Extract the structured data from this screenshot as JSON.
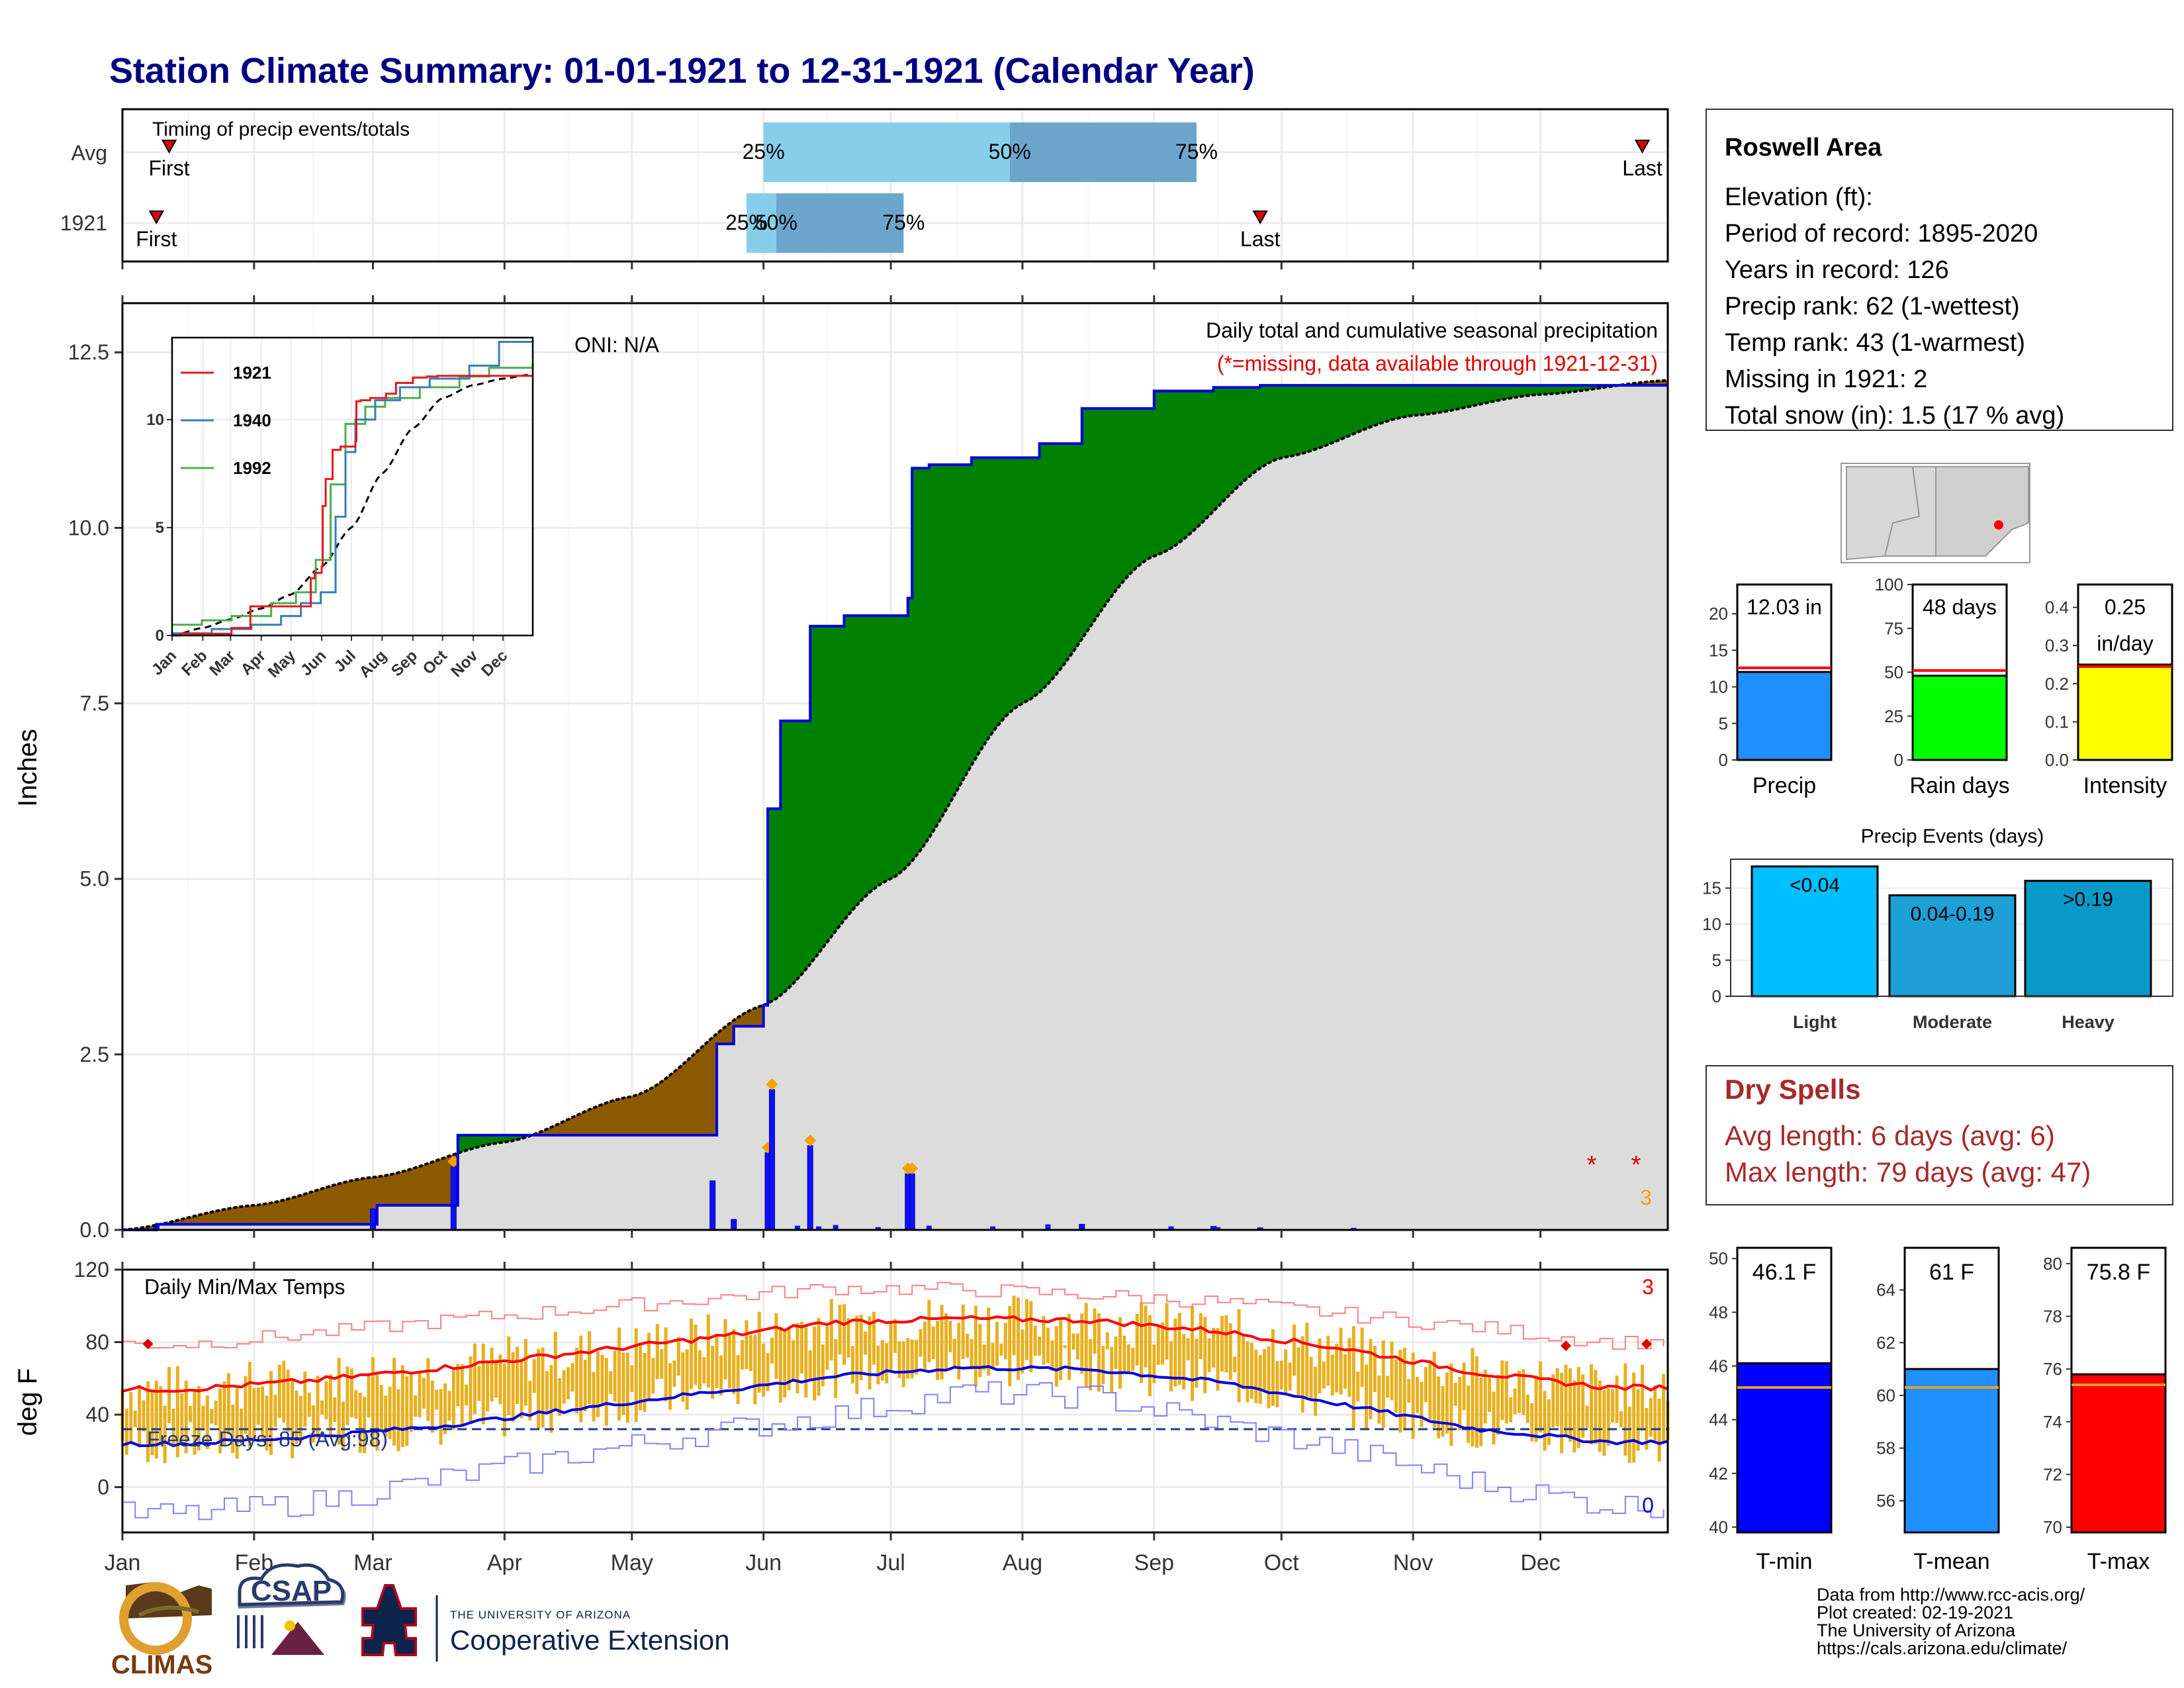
{
  "page": {
    "title": "Station Climate Summary: 01-01-1921 to 12-31-1921 (Calendar Year)"
  },
  "timing": {
    "title": "Timing of precip events/totals",
    "rows": [
      {
        "label": "Avg",
        "first_label": "First",
        "last_label": "Last",
        "first_day": 11,
        "last_day": 358,
        "p25_day": 151,
        "p50_day": 209,
        "p75_day": 253,
        "p25_label": "25%",
        "p50_label": "50%",
        "p75_label": "75%"
      },
      {
        "label": "1921",
        "first_day": 8,
        "first_label": "First",
        "last_day": 268,
        "last_label": "Last",
        "p25_day": 147,
        "p50_day": 154,
        "p75_day": 184,
        "p25_label": "25%",
        "p50_label": "50%",
        "p75_label": "75%"
      }
    ]
  },
  "precip": {
    "ylabel": "Inches",
    "title": "Daily total and cumulative seasonal precipitation",
    "note": "(*=missing, data available through 1921-12-31)",
    "oni": "ONI: N/A",
    "missing_count": "3",
    "yticks": [
      "0.0",
      "2.5",
      "5.0",
      "7.5",
      "10.0",
      "12.5"
    ]
  },
  "inset": {
    "legend": [
      {
        "name": "1921",
        "color": "#e41a1c"
      },
      {
        "name": "1940",
        "color": "#377eb8"
      },
      {
        "name": "1992",
        "color": "#4daf4a"
      }
    ],
    "yticks": [
      "0",
      "5",
      "10"
    ],
    "months": [
      "Jan",
      "Feb",
      "Mar",
      "Apr",
      "May",
      "Jun",
      "Jul",
      "Aug",
      "Sep",
      "Oct",
      "Nov",
      "Dec"
    ]
  },
  "temps": {
    "ylabel": "deg F",
    "title": "Daily Min/Max Temps",
    "freeze_label": "Freeze Days: 85 (Avg:98)",
    "count_max": "3",
    "count_min": "0",
    "yticks": [
      "0",
      "40",
      "80",
      "120"
    ]
  },
  "months": [
    "Jan",
    "Feb",
    "Mar",
    "Apr",
    "May",
    "Jun",
    "Jul",
    "Aug",
    "Sep",
    "Oct",
    "Nov",
    "Dec"
  ],
  "station": {
    "name": "Roswell Area",
    "lines": [
      "Elevation (ft):",
      "Period of record: 1895-2020",
      "Years in record: 126",
      "Precip rank: 62 (1-wettest)",
      "Temp rank: 43 (1-warmest)",
      "Missing in 1921: 2",
      "Total snow (in): 1.5 (17 % avg)"
    ]
  },
  "mini_bars": [
    {
      "label": "Precip",
      "value_text": "12.03 in",
      "value": 12.03,
      "avg": 12.6,
      "ymax": 24,
      "yticks": [
        "0",
        "5",
        "10",
        "15",
        "20"
      ],
      "color": "#1e90ff"
    },
    {
      "label": "Rain days",
      "value_text": "48 days",
      "value": 48,
      "avg": 51,
      "ymax": 100,
      "yticks": [
        "0",
        "25",
        "50",
        "75",
        "100"
      ],
      "color": "#00ff00"
    },
    {
      "label": "Intensity",
      "value_text": "0.25",
      "value_text2": "in/day",
      "value": 0.25,
      "avg": 0.245,
      "ymax": 0.46,
      "yticks": [
        "0.0",
        "0.1",
        "0.2",
        "0.3",
        "0.4"
      ],
      "color": "#ffff00"
    }
  ],
  "events": {
    "title": "Precip Events (days)",
    "yticks": [
      "0",
      "5",
      "10",
      "15"
    ],
    "bars": [
      {
        "category": "Light",
        "label": "<0.04",
        "value": 18,
        "color": "#00bfff"
      },
      {
        "category": "Moderate",
        "label": "0.04-0.19",
        "value": 14,
        "color": "#1e9fd6"
      },
      {
        "category": "Heavy",
        "label": ">0.19",
        "value": 16,
        "color": "#0899c9"
      }
    ]
  },
  "dry_spells": {
    "title": "Dry Spells",
    "line1": "Avg length: 6 days (avg: 6)",
    "line2": "Max length: 79 days (avg: 47)"
  },
  "temp_bars": [
    {
      "label": "T-min",
      "value_text": "46.1 F",
      "value": 46.1,
      "avg": 45.2,
      "ymin": 39.8,
      "ymax": 50.4,
      "yticks": [
        "40",
        "42",
        "44",
        "46",
        "48",
        "50"
      ],
      "color": "#0000ff"
    },
    {
      "label": "T-mean",
      "value_text": "61 F",
      "value": 61.0,
      "avg": 60.3,
      "ymin": 54.8,
      "ymax": 65.6,
      "yticks": [
        "56",
        "58",
        "60",
        "62",
        "64"
      ],
      "color": "#1e90ff"
    },
    {
      "label": "T-max",
      "value_text": "75.8 F",
      "value": 75.8,
      "avg": 75.4,
      "ymin": 69.8,
      "ymax": 80.6,
      "yticks": [
        "70",
        "72",
        "74",
        "76",
        "78",
        "80"
      ],
      "color": "#ff0000"
    }
  ],
  "footer": {
    "lines": [
      "Data from http://www.rcc-acis.org/",
      "Plot created: 02-19-2021",
      "The University of Arizona",
      "https://cals.arizona.edu/climate/"
    ],
    "climas": "CLIMAS",
    "csap": "CSAP",
    "ua_small": "THE UNIVERSITY OF ARIZONA",
    "ua_big": "Cooperative Extension"
  },
  "chart_data": [
    {
      "type": "bar",
      "title": "Timing of precip events/totals",
      "categories": [
        "Avg",
        "1921"
      ],
      "series": [
        {
          "name": "25%",
          "values": [
            151,
            147
          ]
        },
        {
          "name": "50%",
          "values": [
            209,
            154
          ]
        },
        {
          "name": "75%",
          "values": [
            253,
            184
          ]
        }
      ]
    },
    {
      "type": "line",
      "title": "Daily total and cumulative seasonal precipitation",
      "ylabel": "Inches",
      "ylim": [
        0,
        13.2
      ],
      "xlim": [
        "1921-01-01",
        "1921-12-31"
      ],
      "series": [
        {
          "name": "1921",
          "x": [
            "1921-01-01",
            "1921-01-09",
            "1921-03-01",
            "1921-03-02",
            "1921-03-20",
            "1921-03-21",
            "1921-05-20",
            "1921-05-21",
            "1921-05-25",
            "1921-06-01",
            "1921-06-02",
            "1921-06-05",
            "1921-06-12",
            "1921-06-20",
            "1921-06-25",
            "1921-07-05",
            "1921-07-06",
            "1921-07-10",
            "1921-07-20",
            "1921-08-05",
            "1921-08-15",
            "1921-09-01",
            "1921-09-15",
            "1921-09-26",
            "1921-12-31"
          ],
          "values": [
            0,
            0.08,
            0.08,
            0.35,
            0.35,
            1.35,
            1.35,
            2.65,
            2.9,
            3.2,
            6.0,
            7.25,
            8.6,
            8.75,
            8.75,
            9.0,
            10.85,
            10.9,
            11.0,
            11.2,
            11.7,
            11.95,
            12.0,
            12.03,
            12.03
          ]
        },
        {
          "name": "Average",
          "x": [
            "1921-01-01",
            "1921-02-01",
            "1921-03-01",
            "1921-04-01",
            "1921-05-01",
            "1921-06-01",
            "1921-07-01",
            "1921-08-01",
            "1921-09-01",
            "1921-10-01",
            "1921-11-01",
            "1921-12-01",
            "1921-12-31"
          ],
          "values": [
            0,
            0.35,
            0.75,
            1.25,
            1.9,
            3.2,
            5.0,
            7.5,
            9.6,
            11.0,
            11.6,
            11.9,
            12.1
          ]
        }
      ],
      "daily_precip": {
        "x": [
          "1921-01-09",
          "1921-03-01",
          "1921-03-20",
          "1921-05-20",
          "1921-05-25",
          "1921-06-02",
          "1921-06-03",
          "1921-06-12",
          "1921-07-05",
          "1921-07-06",
          "1921-08-15",
          "1921-09-15",
          "1921-09-26"
        ],
        "values": [
          0.08,
          0.3,
          0.9,
          0.7,
          0.15,
          1.1,
          2.0,
          1.2,
          0.8,
          0.8,
          0.08,
          0.05,
          0.03
        ]
      }
    },
    {
      "type": "line",
      "title": "Daily Min/Max Temps",
      "ylabel": "deg F",
      "ylim": [
        -25,
        120
      ],
      "x": [
        "Jan",
        "Feb",
        "Mar",
        "Apr",
        "May",
        "Jun",
        "Jul",
        "Aug",
        "Sep",
        "Oct",
        "Nov",
        "Dec"
      ],
      "series": [
        {
          "name": "Avg max",
          "values": [
            54,
            59,
            66,
            74,
            82,
            91,
            93,
            92,
            86,
            76,
            63,
            55
          ]
        },
        {
          "name": "Avg min",
          "values": [
            24,
            28,
            34,
            43,
            52,
            61,
            66,
            65,
            58,
            45,
            32,
            25
          ]
        },
        {
          "name": "Record max",
          "values": [
            79,
            85,
            92,
            98,
            104,
            110,
            109,
            106,
            102,
            95,
            88,
            80
          ]
        },
        {
          "name": "Record min",
          "values": [
            -15,
            -8,
            5,
            18,
            30,
            40,
            52,
            50,
            35,
            20,
            2,
            -10
          ]
        }
      ]
    },
    {
      "type": "bar",
      "title": "Precip Events (days)",
      "categories": [
        "Light",
        "Moderate",
        "Heavy"
      ],
      "values": [
        18,
        14,
        16
      ]
    }
  ]
}
